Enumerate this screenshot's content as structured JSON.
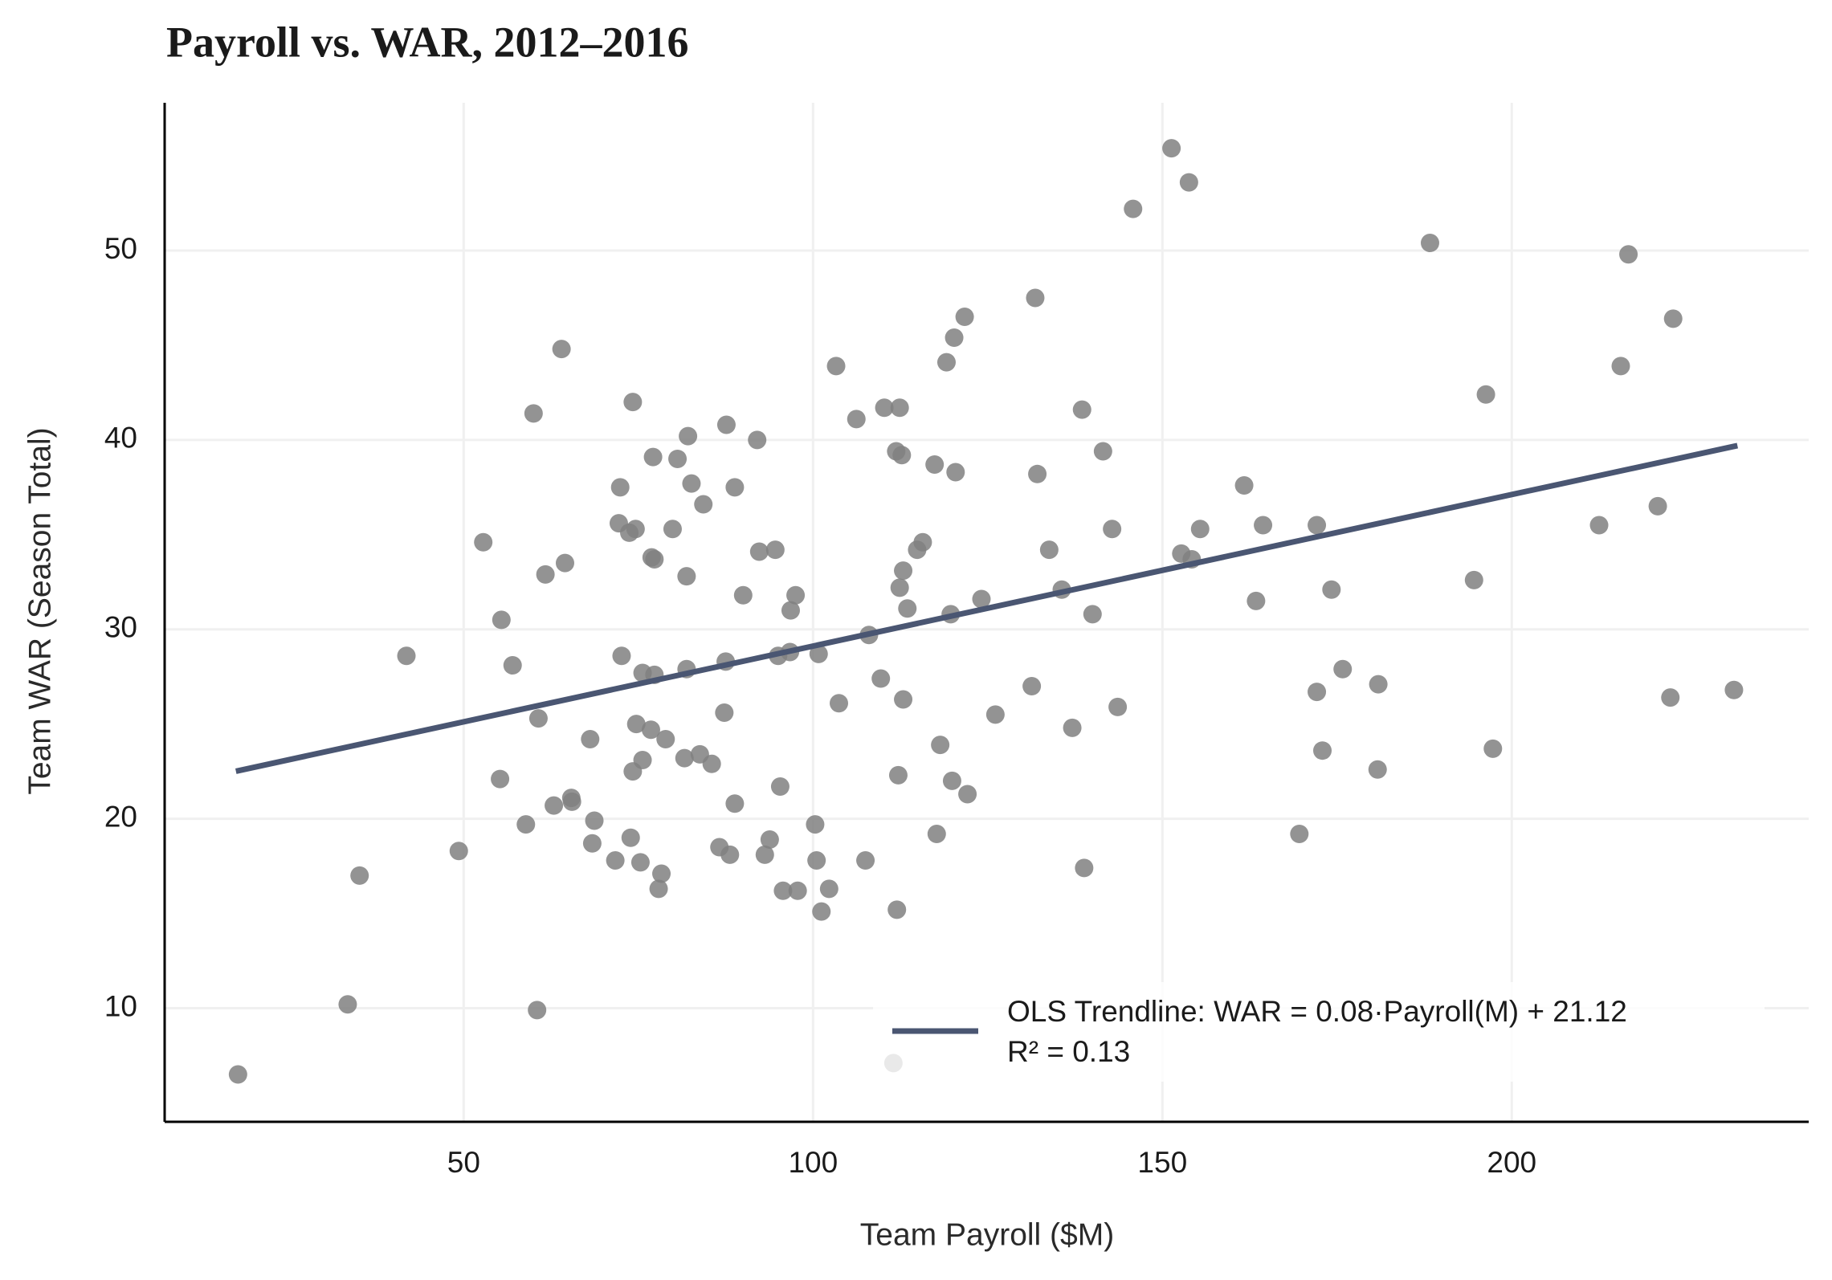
{
  "chart_data": {
    "type": "scatter",
    "title": "Payroll vs. WAR, 2012–2016",
    "x_label": "Team Payroll ($M)",
    "y_label": "Team WAR (Season Total)",
    "xlim": [
      7.2,
      242.5
    ],
    "ylim": [
      4.0,
      57.8
    ],
    "xticks": [
      50,
      100,
      150,
      200
    ],
    "yticks": [
      10,
      20,
      30,
      40,
      50
    ],
    "grid": true,
    "legend": "lower right",
    "color": "#808080",
    "x": [
      17.7,
      33.4,
      35.1,
      41.8,
      49.3,
      52.8,
      55.2,
      55.4,
      57.0,
      58.9,
      60.0,
      60.7,
      60.5,
      61.7,
      62.9,
      64.0,
      64.5,
      65.4,
      65.5,
      68.1,
      68.4,
      68.7,
      71.7,
      72.2,
      72.4,
      72.6,
      73.9,
      73.7,
      74.2,
      74.2,
      74.6,
      74.7,
      75.3,
      75.6,
      75.6,
      76.8,
      76.9,
      77.1,
      77.3,
      77.3,
      77.9,
      78.3,
      78.9,
      79.9,
      80.6,
      81.6,
      81.9,
      81.9,
      82.1,
      82.6,
      83.8,
      84.3,
      85.5,
      86.6,
      87.3,
      87.5,
      87.6,
      88.1,
      88.8,
      88.8,
      90.0,
      92.0,
      92.3,
      93.1,
      93.8,
      94.6,
      95.0,
      95.3,
      95.7,
      96.7,
      96.8,
      97.5,
      97.8,
      100.3,
      100.5,
      100.8,
      101.2,
      102.3,
      103.3,
      103.7,
      106.2,
      107.5,
      108.0,
      109.7,
      110.2,
      111.9,
      112.0,
      112.2,
      112.4,
      112.4,
      112.7,
      112.9,
      112.9,
      113.5,
      114.9,
      115.7,
      117.4,
      117.7,
      118.2,
      119.1,
      119.7,
      119.9,
      120.2,
      120.4,
      121.7,
      122.1,
      124.1,
      126.1,
      131.3,
      131.8,
      132.1,
      133.8,
      135.6,
      137.1,
      138.5,
      138.8,
      140.0,
      141.5,
      142.8,
      143.6,
      145.8,
      151.3,
      152.7,
      153.8,
      154.2,
      155.4,
      161.7,
      163.4,
      164.4,
      169.6,
      172.1,
      172.1,
      172.9,
      174.2,
      175.8,
      180.8,
      180.9,
      188.3,
      194.6,
      196.3,
      197.3,
      212.5,
      215.6,
      216.7,
      220.9,
      222.7,
      223.1,
      231.8,
      111.5
    ],
    "values": [
      6.5,
      10.2,
      17.0,
      28.6,
      18.3,
      34.6,
      22.1,
      30.5,
      28.1,
      19.7,
      41.4,
      25.3,
      9.9,
      32.9,
      20.7,
      44.8,
      33.5,
      21.1,
      20.9,
      24.2,
      18.7,
      19.9,
      17.8,
      35.6,
      37.5,
      28.6,
      19.0,
      35.1,
      42.0,
      22.5,
      35.3,
      25.0,
      17.7,
      27.7,
      23.1,
      24.7,
      33.8,
      39.1,
      27.6,
      33.7,
      16.3,
      17.1,
      24.2,
      35.3,
      39.0,
      23.2,
      32.8,
      27.9,
      40.2,
      37.7,
      23.4,
      36.6,
      22.9,
      18.5,
      25.6,
      28.3,
      40.8,
      18.1,
      20.8,
      37.5,
      31.8,
      40.0,
      34.1,
      18.1,
      18.9,
      34.2,
      28.6,
      21.7,
      16.2,
      28.8,
      31.0,
      31.8,
      16.2,
      19.7,
      17.8,
      28.7,
      15.1,
      16.3,
      43.9,
      26.1,
      41.1,
      17.8,
      29.7,
      27.4,
      41.7,
      39.4,
      15.2,
      22.3,
      41.7,
      32.2,
      39.2,
      33.1,
      26.3,
      31.1,
      34.2,
      34.6,
      38.7,
      19.2,
      23.9,
      44.1,
      30.8,
      22.0,
      45.4,
      38.3,
      46.5,
      21.3,
      31.6,
      25.5,
      27.0,
      47.5,
      38.2,
      34.2,
      32.1,
      24.8,
      41.6,
      17.4,
      30.8,
      39.4,
      35.3,
      25.9,
      52.2,
      55.4,
      34.0,
      53.6,
      33.7,
      35.3,
      37.6,
      31.5,
      35.5,
      19.2,
      26.7,
      35.5,
      23.6,
      32.1,
      27.9,
      22.6,
      27.1,
      50.4,
      32.6,
      42.4,
      23.7,
      35.5,
      43.9,
      49.8,
      36.5,
      26.4,
      46.4,
      26.8,
      7.1
    ],
    "trendline": {
      "name": "OLS Trendline: WAR = 0.08·Payroll(M) + 21.12",
      "color": "#4a5672",
      "x": [
        17.4,
        232.3
      ],
      "values": [
        22.51,
        39.7
      ]
    },
    "annotation": "R² = 0.13"
  }
}
